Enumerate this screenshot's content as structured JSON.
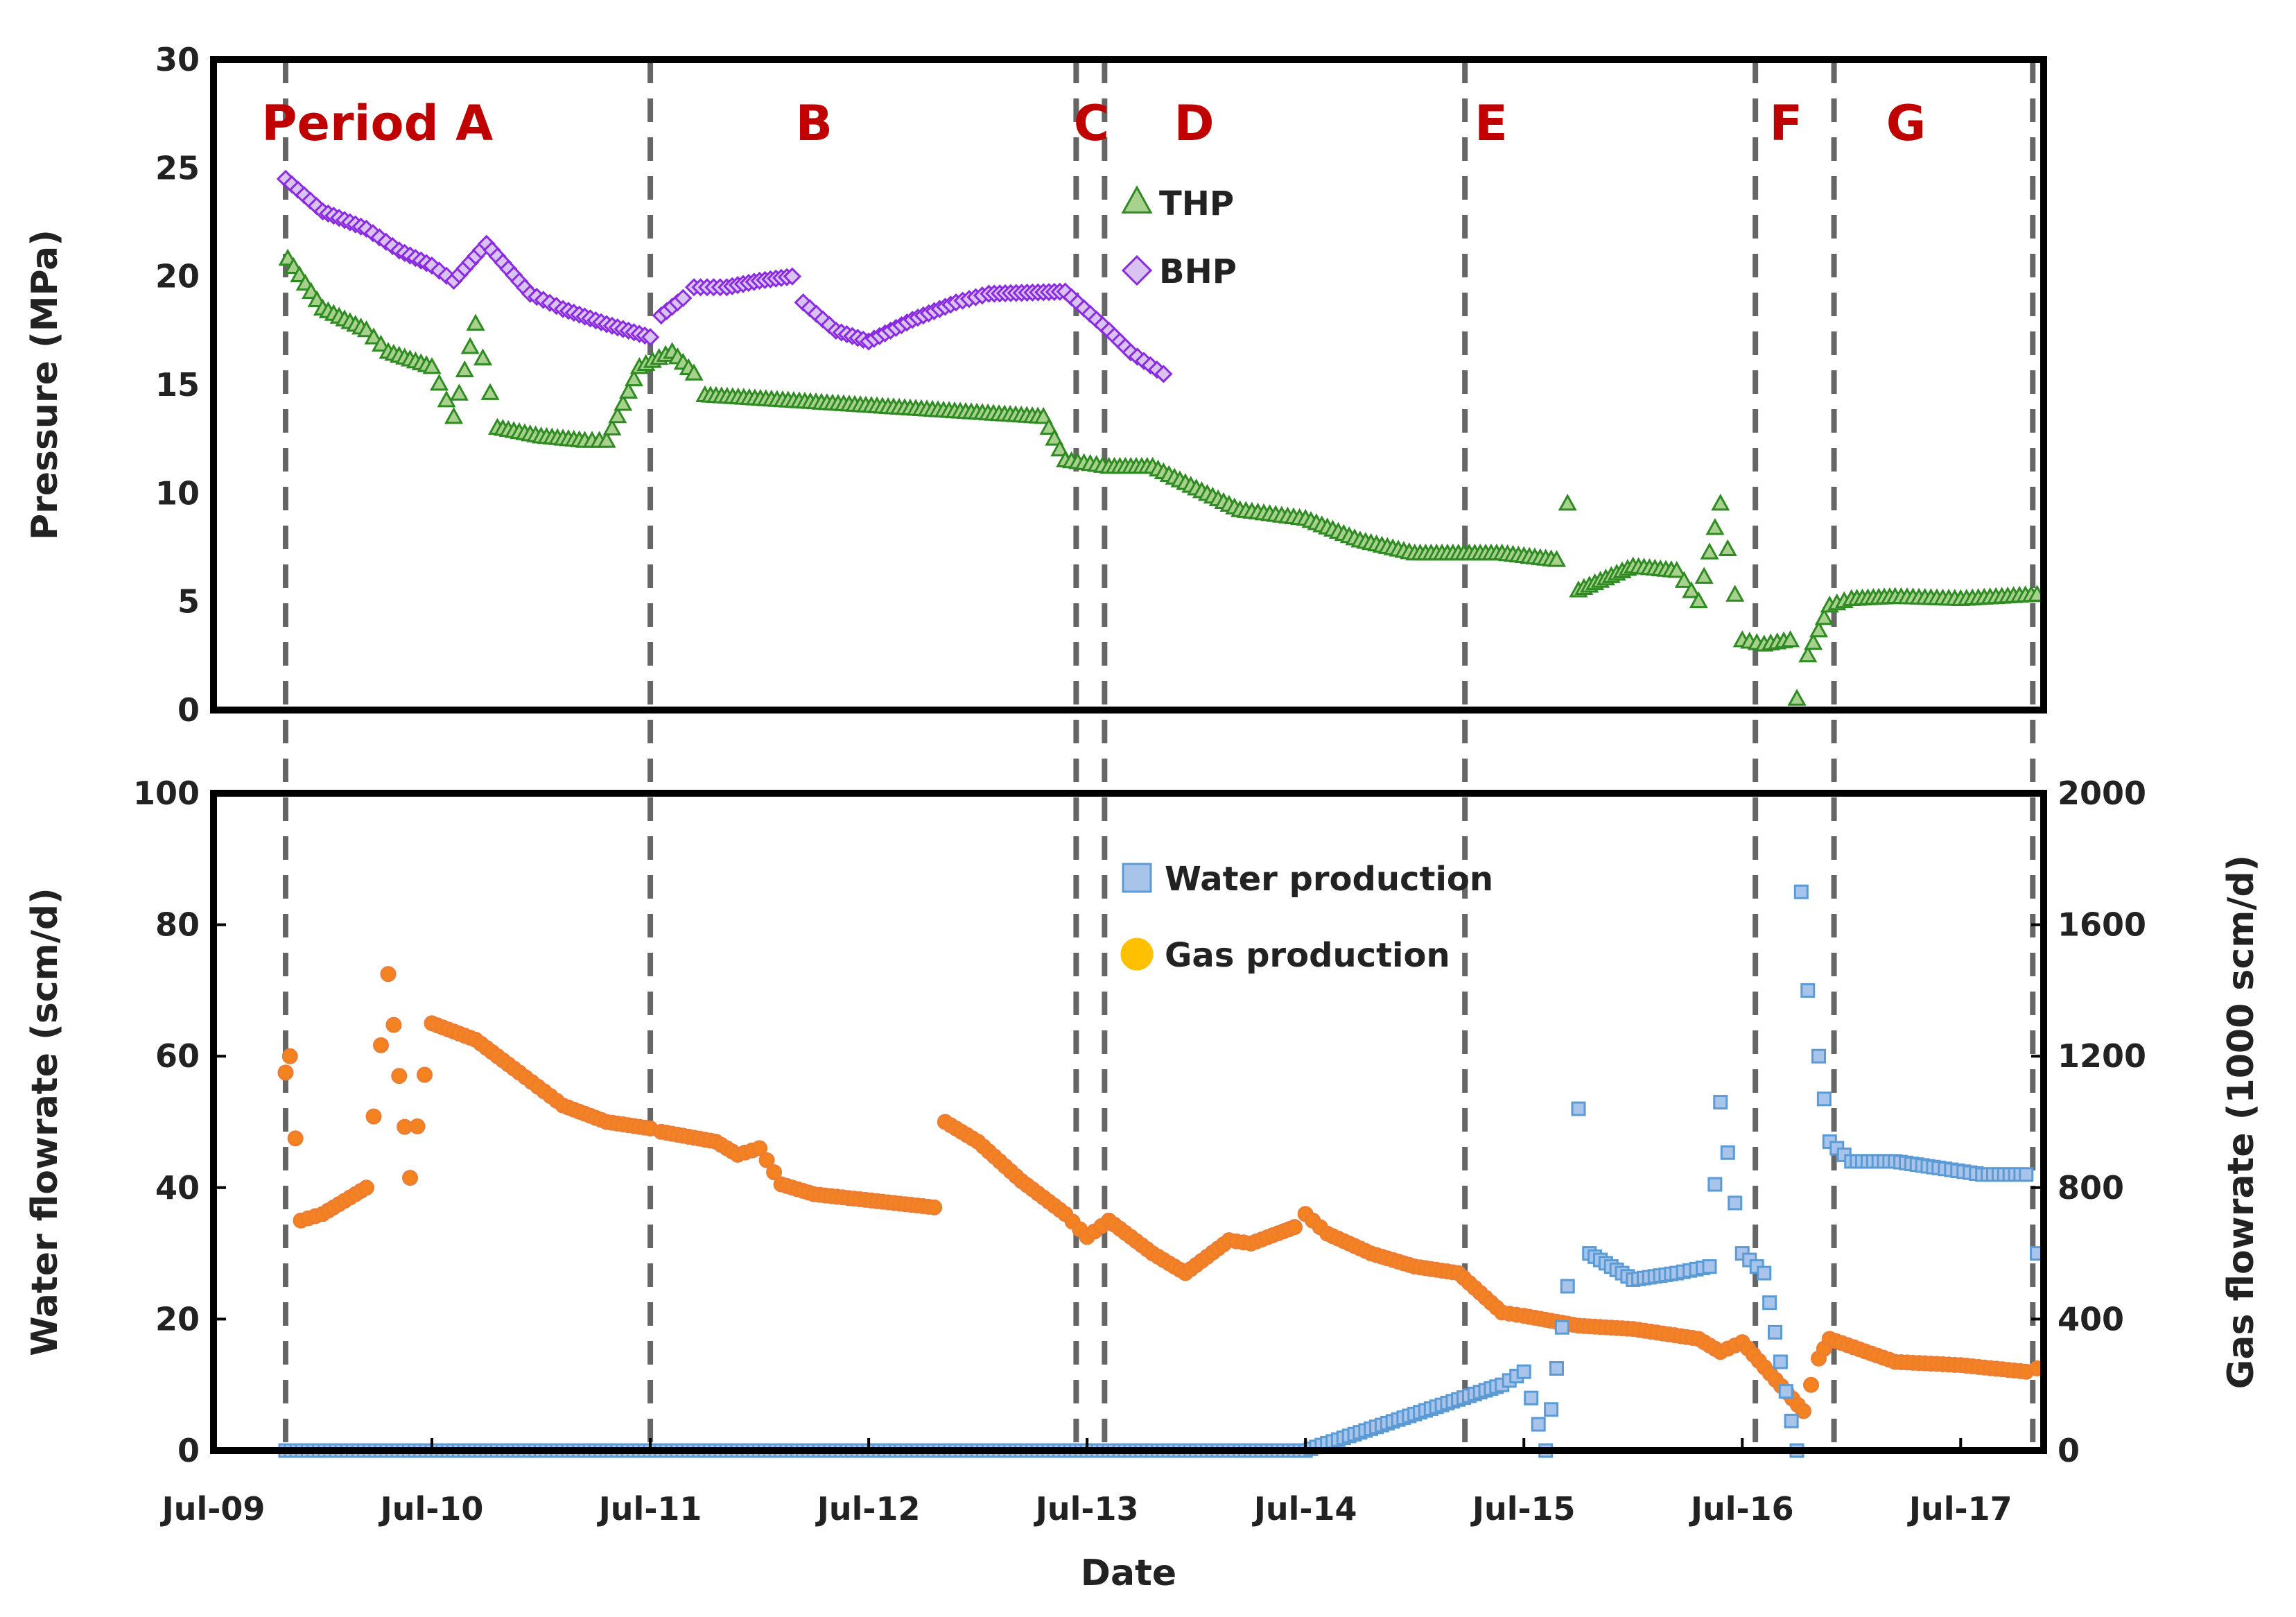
{
  "chart_data": [
    {
      "type": "scatter",
      "title": "",
      "ylabel": "Pressure (MPa)",
      "ylim": [
        0,
        30
      ],
      "yticks": [
        0,
        5,
        10,
        15,
        20,
        25,
        30
      ],
      "xlim": [
        2009.5,
        2017.88
      ],
      "grid": false,
      "legend_position": "top-center",
      "legend": [
        {
          "key": "thp",
          "label": "THP"
        },
        {
          "key": "bhp",
          "label": "BHP"
        }
      ],
      "colors": {
        "thp_fill": "#a9d18e",
        "thp_edge": "#2e8b22",
        "bhp_fill": "#d9c3f3",
        "bhp_edge": "#8a2be2"
      },
      "series": [
        {
          "name": "BHP",
          "x": [
            2009.83,
            2010.0,
            2010.2,
            2010.35,
            2010.5,
            2010.6,
            2010.75,
            2010.95,
            2011.1,
            2011.3,
            2011.5,
            2011.55,
            2011.65,
            2011.7,
            2011.85,
            2012.0,
            2012.15,
            2012.2,
            2012.35,
            2012.5,
            2012.7,
            2012.9,
            2013.05,
            2013.4,
            2013.6,
            2013.7,
            2013.85
          ],
          "y": [
            24.5,
            23.0,
            22.2,
            21.2,
            20.5,
            19.8,
            21.5,
            19.2,
            18.5,
            17.8,
            17.2,
            18.2,
            19.0,
            19.5,
            19.5,
            19.8,
            20.0,
            18.8,
            17.5,
            17.0,
            18.0,
            18.8,
            19.2,
            19.3,
            17.5,
            16.5,
            15.5
          ]
        },
        {
          "name": "THP",
          "x": [
            2009.84,
            2010.0,
            2010.2,
            2010.3,
            2010.5,
            2010.6,
            2010.7,
            2010.8,
            2011.0,
            2011.2,
            2011.3,
            2011.45,
            2011.6,
            2011.7,
            2011.75,
            2013.3,
            2013.4,
            2013.6,
            2013.8,
            2014.0,
            2014.2,
            2014.5,
            2014.75,
            2015.0,
            2015.4,
            2015.65,
            2015.7,
            2015.75,
            2016.0,
            2016.2,
            2016.3,
            2016.4,
            2016.5,
            2016.6,
            2016.72,
            2016.75,
            2016.8,
            2016.9,
            2017.0,
            2017.2,
            2017.5,
            2017.85
          ],
          "y": [
            20.8,
            18.5,
            17.5,
            16.5,
            15.8,
            13.5,
            17.8,
            13.0,
            12.6,
            12.4,
            12.4,
            15.8,
            16.5,
            15.5,
            14.5,
            13.5,
            11.5,
            11.2,
            11.2,
            10.2,
            9.2,
            8.8,
            7.8,
            7.2,
            7.2,
            6.9,
            9.5,
            5.5,
            6.6,
            6.4,
            5.0,
            9.5,
            3.2,
            3.0,
            3.2,
            0.5,
            2.5,
            4.8,
            5.1,
            5.2,
            5.1,
            5.3
          ]
        }
      ]
    },
    {
      "type": "scatter",
      "title": "",
      "xlabel": "Date",
      "ylabel": "Water flowrate (scm/d)",
      "ylabel_right": "Gas flowrate (1000 scm/d)",
      "ylim": [
        0,
        100
      ],
      "ylim_right": [
        0,
        2000
      ],
      "yticks": [
        0,
        20,
        40,
        60,
        80,
        100
      ],
      "yticks_right": [
        0,
        400,
        800,
        1200,
        1600,
        2000
      ],
      "xlim": [
        2009.5,
        2017.88
      ],
      "xticks": [
        {
          "value": 2009.5,
          "label": "Jul-09"
        },
        {
          "value": 2010.5,
          "label": "Jul-10"
        },
        {
          "value": 2011.5,
          "label": "Jul-11"
        },
        {
          "value": 2012.5,
          "label": "Jul-12"
        },
        {
          "value": 2013.5,
          "label": "Jul-13"
        },
        {
          "value": 2014.5,
          "label": "Jul-14"
        },
        {
          "value": 2015.5,
          "label": "Jul-15"
        },
        {
          "value": 2016.5,
          "label": "Jul-16"
        },
        {
          "value": 2017.5,
          "label": "Jul-17"
        }
      ],
      "grid": false,
      "legend_position": "top-center",
      "legend": [
        {
          "key": "water",
          "label": "Water production"
        },
        {
          "key": "gas",
          "label": "Gas production"
        }
      ],
      "colors": {
        "water_fill": "#a9c4eb",
        "water_edge": "#5b9bd5",
        "gas_fill": "#ffc000",
        "gas_edge": "#ed7d31",
        "gas_dots": "#f4821f"
      },
      "series": [
        {
          "name": "Water production",
          "axis": "left",
          "x": [
            2009.83,
            2010.5,
            2011.5,
            2012.5,
            2013.5,
            2014.5,
            2015.4,
            2015.5,
            2015.6,
            2015.7,
            2015.75,
            2015.8,
            2016.0,
            2016.2,
            2016.35,
            2016.4,
            2016.5,
            2016.6,
            2016.75,
            2016.77,
            2016.8,
            2016.85,
            2016.9,
            2017.0,
            2017.2,
            2017.4,
            2017.6,
            2017.8,
            2017.85
          ],
          "y": [
            0,
            0,
            0,
            0,
            0,
            0,
            10,
            12,
            0,
            25,
            52,
            30,
            26,
            27,
            28,
            53,
            30,
            27,
            0,
            85,
            70,
            60,
            47,
            44,
            44,
            43,
            42,
            42,
            30
          ]
        },
        {
          "name": "Gas production",
          "axis": "right",
          "x": [
            2009.83,
            2009.85,
            2009.9,
            2010.0,
            2010.2,
            2010.3,
            2010.4,
            2010.5,
            2010.7,
            2010.9,
            2011.1,
            2011.3,
            2011.5,
            2011.55,
            2011.8,
            2011.9,
            2012.0,
            2012.1,
            2012.25,
            2012.8,
            2012.85,
            2013.0,
            2013.2,
            2013.4,
            2013.5,
            2013.6,
            2013.8,
            2013.95,
            2014.15,
            2014.25,
            2014.45,
            2014.5,
            2014.6,
            2014.8,
            2015.0,
            2015.2,
            2015.4,
            2015.5,
            2015.75,
            2016.0,
            2016.3,
            2016.4,
            2016.5,
            2016.78,
            2016.85,
            2016.9,
            2017.2,
            2017.5,
            2017.8,
            2017.85
          ],
          "y": [
            1150,
            1200,
            700,
            720,
            800,
            1450,
            830,
            1300,
            1250,
            1150,
            1050,
            1000,
            980,
            970,
            940,
            900,
            920,
            810,
            780,
            740,
            1000,
            940,
            820,
            720,
            650,
            700,
            600,
            540,
            640,
            630,
            680,
            720,
            660,
            600,
            560,
            540,
            420,
            410,
            380,
            370,
            340,
            300,
            330,
            120,
            280,
            340,
            270,
            260,
            240,
            250
          ]
        }
      ]
    }
  ],
  "periods": [
    {
      "label": "Period A",
      "x": 2010.25
    },
    {
      "label": "B",
      "x": 2012.25
    },
    {
      "label": "C",
      "x": 2013.52
    },
    {
      "label": "D",
      "x": 2013.99
    },
    {
      "label": "E",
      "x": 2015.35
    },
    {
      "label": "F",
      "x": 2016.7
    },
    {
      "label": "G",
      "x": 2017.25
    }
  ],
  "period_boundaries": [
    2009.83,
    2011.5,
    2013.45,
    2013.58,
    2015.23,
    2016.56,
    2016.92,
    2017.83
  ]
}
